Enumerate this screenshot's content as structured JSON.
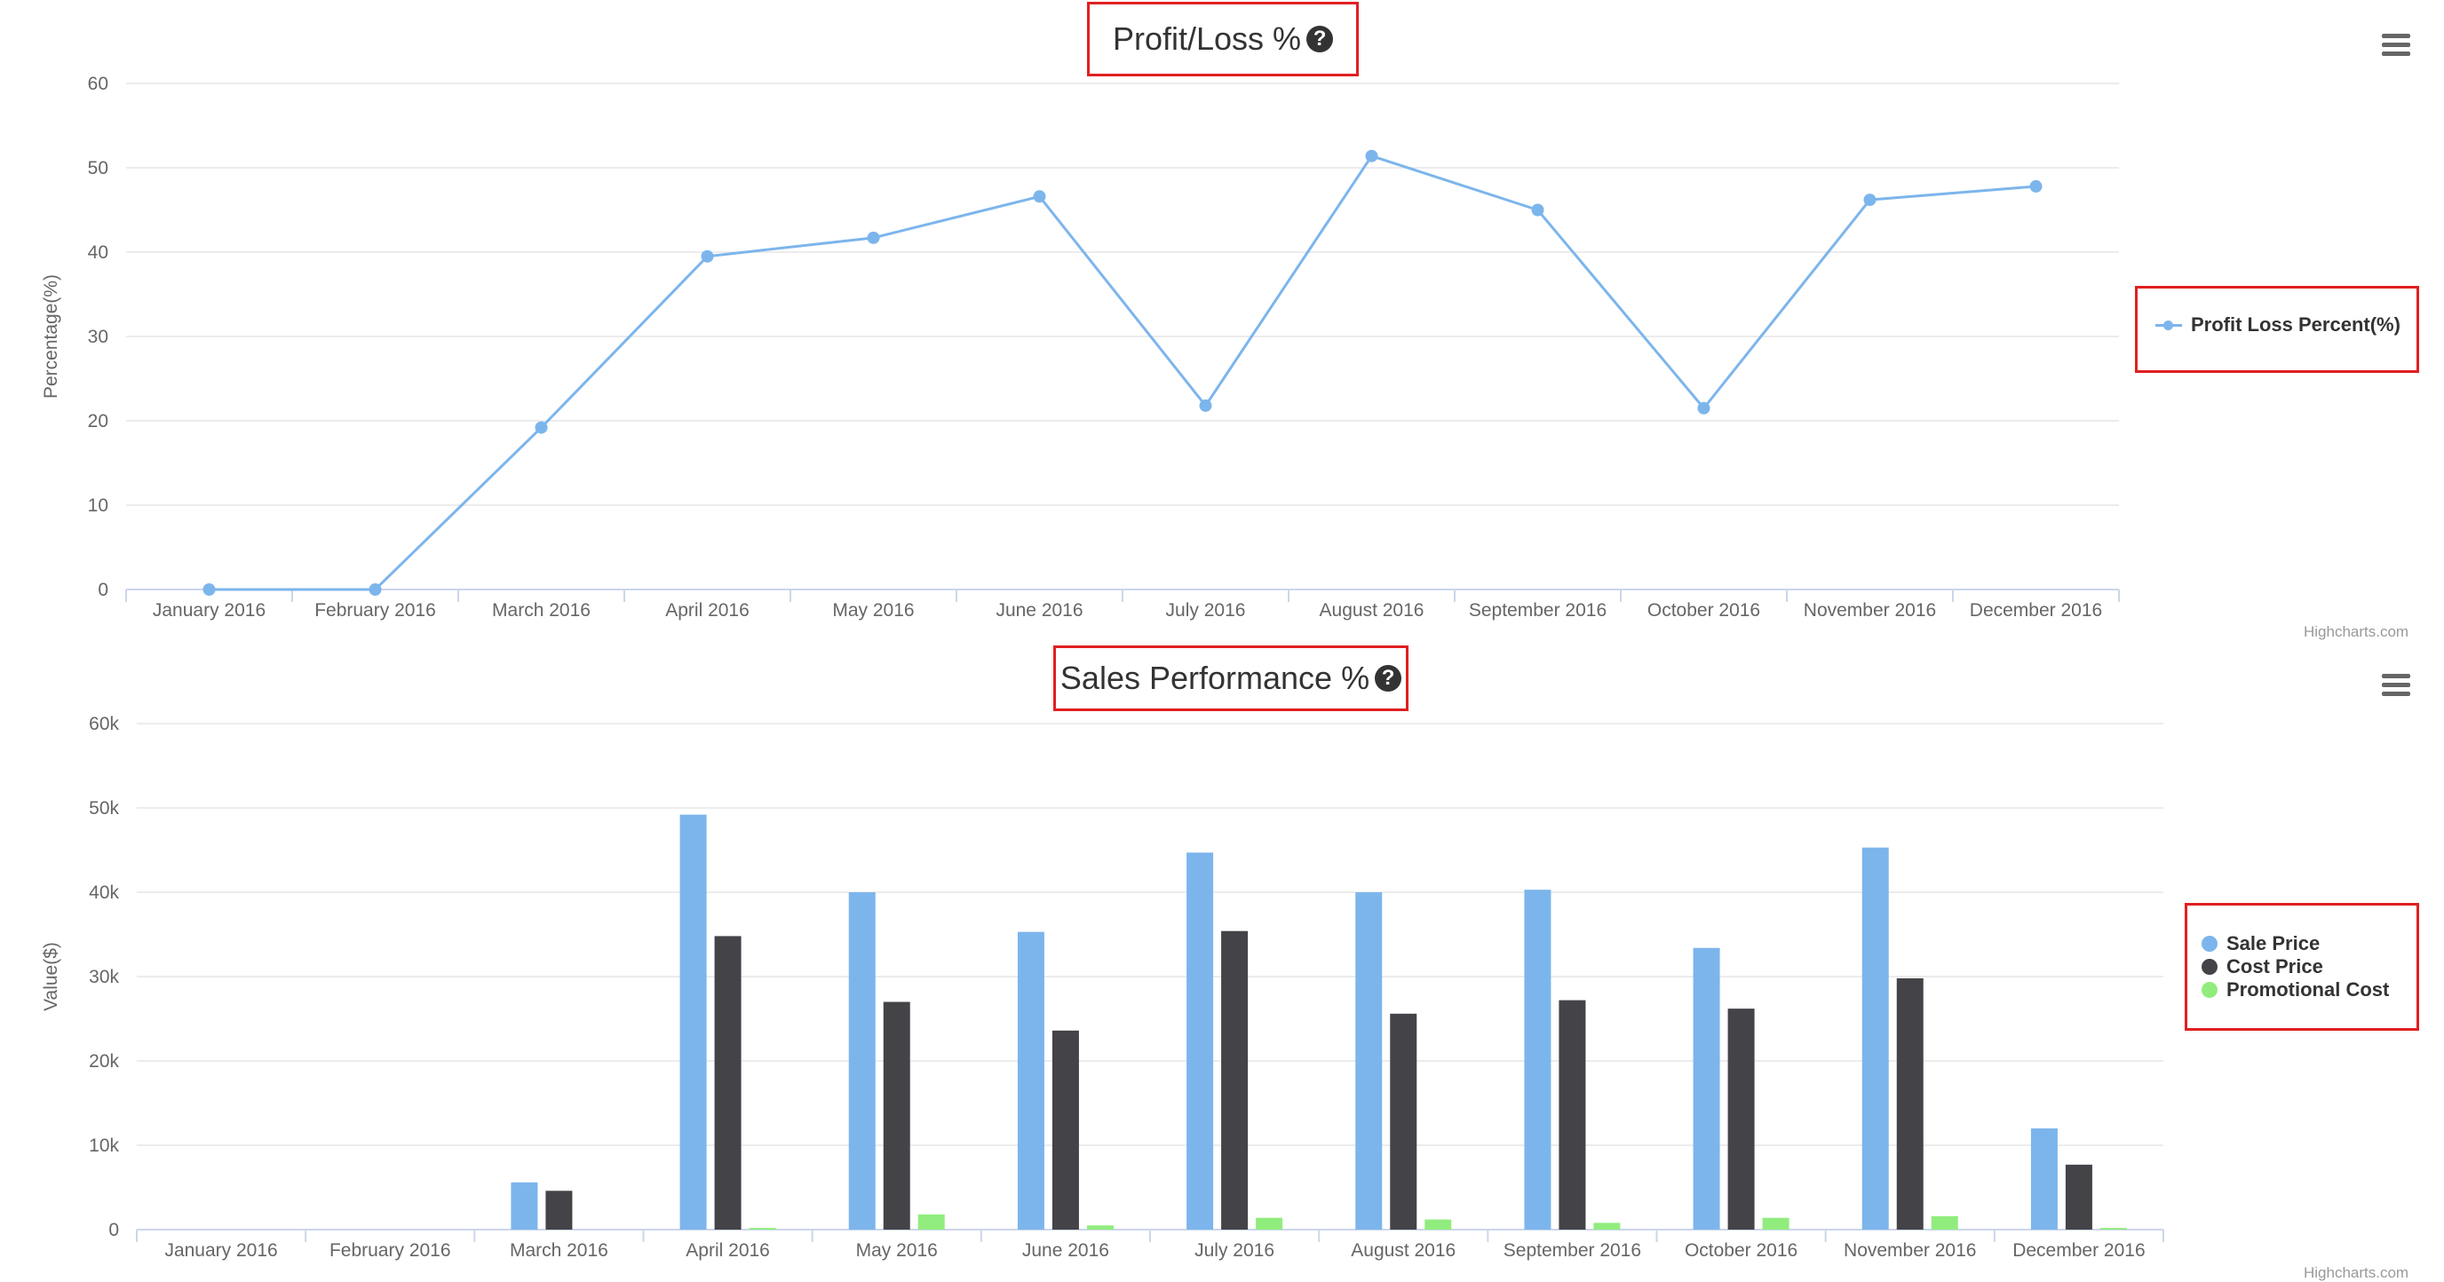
{
  "colors": {
    "blue": "#7cb5ec",
    "dark": "#434348",
    "green": "#90ed7d",
    "red_outline": "#e02020"
  },
  "icons": {
    "help": "question-circle-icon",
    "menu": "hamburger-menu-icon"
  },
  "top_chart": {
    "help_glyph": "?",
    "credits": "Highcharts.com"
  },
  "bottom_chart": {
    "help_glyph": "?",
    "credits": "Highcharts.com"
  },
  "chart_data": [
    {
      "type": "line",
      "title": "Profit/Loss %",
      "ylabel": "Percentage(%)",
      "xlabel": "",
      "ylim": [
        0,
        60
      ],
      "yticks": [
        "0",
        "10",
        "20",
        "30",
        "40",
        "50",
        "60"
      ],
      "grid": true,
      "legend_position": "right",
      "categories": [
        "January 2016",
        "February 2016",
        "March 2016",
        "April 2016",
        "May 2016",
        "June 2016",
        "July 2016",
        "August 2016",
        "September 2016",
        "October 2016",
        "November 2016",
        "December 2016"
      ],
      "series": [
        {
          "name": "Profit Loss Percent(%)",
          "color": "#7cb5ec",
          "values": [
            0,
            0,
            19.2,
            39.5,
            41.7,
            46.6,
            21.8,
            51.4,
            45.0,
            21.5,
            46.2,
            47.8
          ]
        }
      ]
    },
    {
      "type": "bar",
      "title": "Sales Performance %",
      "ylabel": "Value($)",
      "xlabel": "",
      "ylim": [
        0,
        60000
      ],
      "yticks": [
        "0",
        "10k",
        "20k",
        "30k",
        "40k",
        "50k",
        "60k"
      ],
      "grid": true,
      "legend_position": "right",
      "categories": [
        "January 2016",
        "February 2016",
        "March 2016",
        "April 2016",
        "May 2016",
        "June 2016",
        "July 2016",
        "August 2016",
        "September 2016",
        "October 2016",
        "November 2016",
        "December 2016"
      ],
      "series": [
        {
          "name": "Sale Price",
          "color": "#7cb5ec",
          "values": [
            0,
            0,
            5600,
            49200,
            40000,
            35300,
            44700,
            40000,
            40300,
            33400,
            45300,
            12000
          ]
        },
        {
          "name": "Cost Price",
          "color": "#434348",
          "values": [
            0,
            0,
            4600,
            34800,
            27000,
            23600,
            35400,
            25600,
            27200,
            26200,
            29800,
            7700
          ]
        },
        {
          "name": "Promotional Cost",
          "color": "#90ed7d",
          "values": [
            0,
            0,
            0,
            200,
            1800,
            500,
            1400,
            1200,
            800,
            1400,
            1600,
            200
          ]
        }
      ]
    }
  ]
}
